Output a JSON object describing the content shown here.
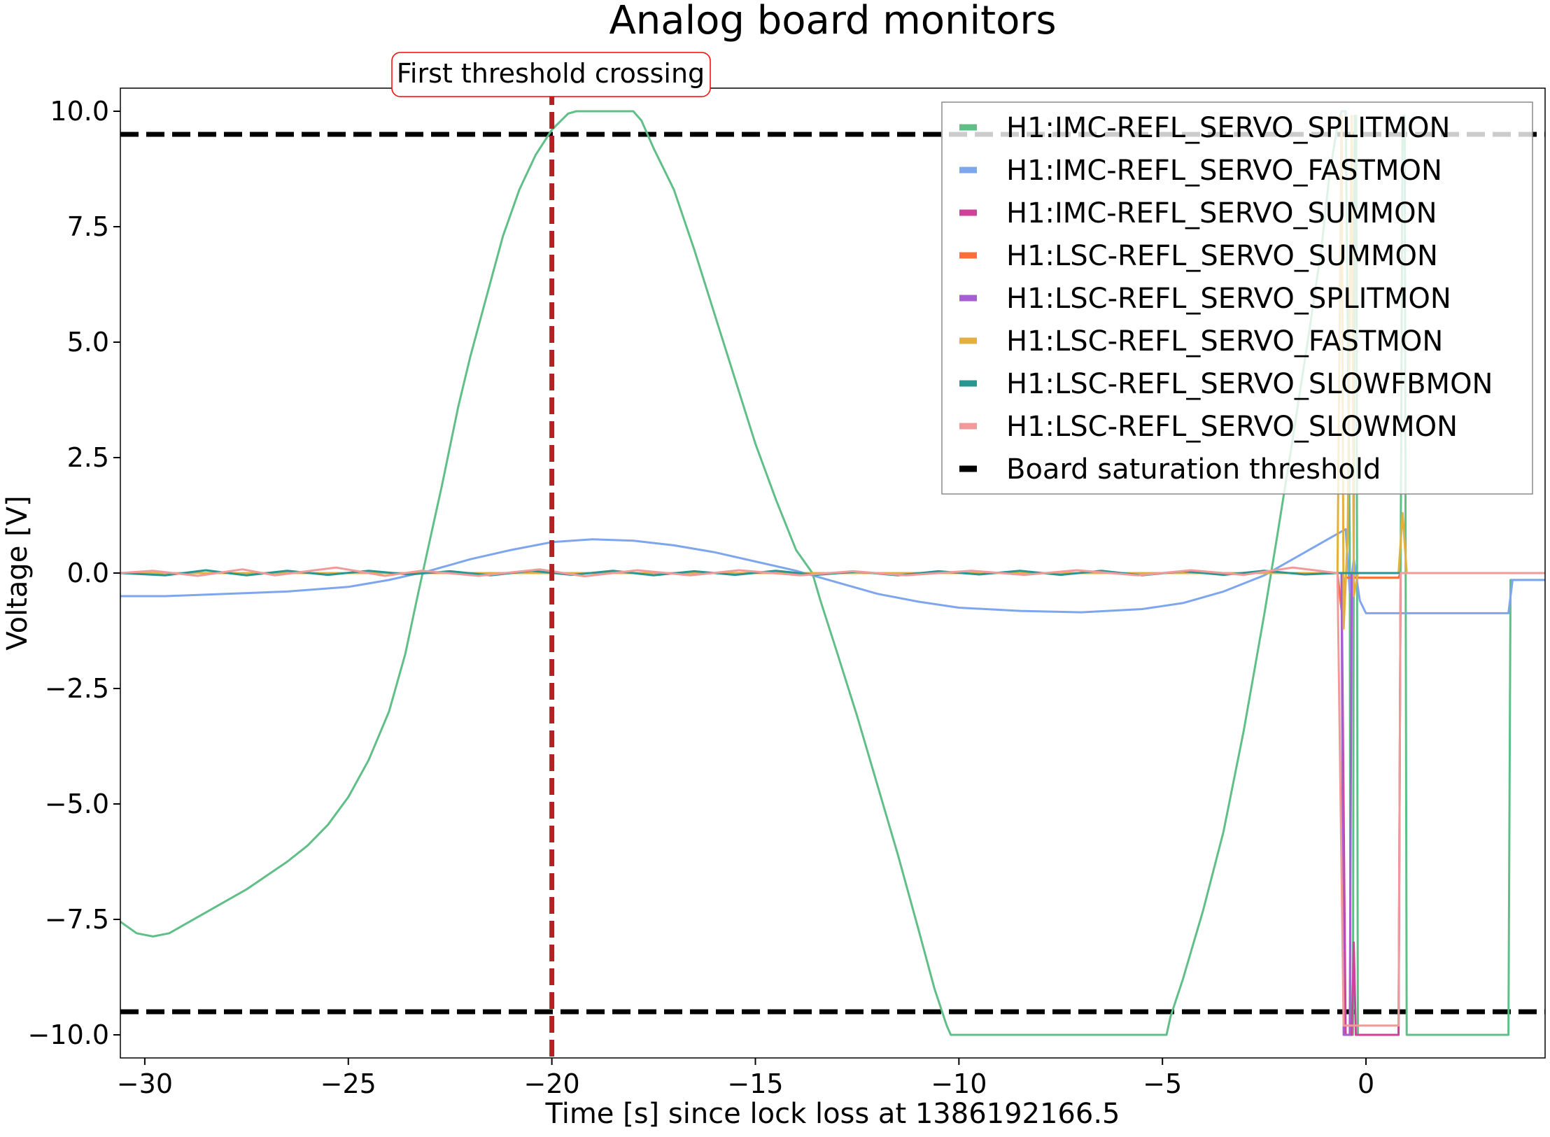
{
  "chart_data": {
    "type": "line",
    "title": "Analog board monitors",
    "xlabel": "Time [s] since lock loss at 1386192166.5",
    "ylabel": "Voltage [V]",
    "xlim": [
      -30.6,
      4.4
    ],
    "ylim": [
      -10.5,
      10.5
    ],
    "xticks": [
      -30,
      -25,
      -20,
      -15,
      -10,
      -5,
      0
    ],
    "xtick_labels": [
      "−30",
      "−25",
      "−20",
      "−15",
      "−10",
      "−5",
      "0"
    ],
    "yticks": [
      10,
      7.5,
      5,
      2.5,
      0,
      -2.5,
      -5,
      -7.5,
      -10
    ],
    "ytick_labels": [
      "10.0",
      "7.5",
      "5.0",
      "2.5",
      "0.0",
      "−2.5",
      "−5.0",
      "−7.5",
      "−10.0"
    ],
    "grid": false,
    "legend_position": "top-right",
    "annotation": {
      "text": "First threshold crossing",
      "x": -20,
      "color": "#b22222",
      "box_edge_color": "#ff0000"
    },
    "thresholds": {
      "name": "Board saturation threshold",
      "values": [
        9.5,
        -9.5
      ],
      "color": "#000000"
    },
    "series": [
      {
        "name": "H1:IMC-REFL_SERVO_SPLITMON",
        "color": "#5fbf87",
        "points": [
          [
            -30.6,
            -7.55
          ],
          [
            -30.2,
            -7.8
          ],
          [
            -29.8,
            -7.87
          ],
          [
            -29.4,
            -7.8
          ],
          [
            -29.0,
            -7.6
          ],
          [
            -28.5,
            -7.35
          ],
          [
            -28.0,
            -7.1
          ],
          [
            -27.5,
            -6.85
          ],
          [
            -27.0,
            -6.55
          ],
          [
            -26.5,
            -6.25
          ],
          [
            -26.0,
            -5.9
          ],
          [
            -25.5,
            -5.45
          ],
          [
            -25.0,
            -4.85
          ],
          [
            -24.5,
            -4.05
          ],
          [
            -24.0,
            -3.0
          ],
          [
            -23.6,
            -1.75
          ],
          [
            -23.3,
            -0.5
          ],
          [
            -23.0,
            0.7
          ],
          [
            -22.7,
            1.9
          ],
          [
            -22.3,
            3.6
          ],
          [
            -22.0,
            4.7
          ],
          [
            -21.6,
            6.0
          ],
          [
            -21.2,
            7.3
          ],
          [
            -20.8,
            8.3
          ],
          [
            -20.4,
            9.05
          ],
          [
            -20.0,
            9.6
          ],
          [
            -19.6,
            9.95
          ],
          [
            -19.4,
            10.0
          ],
          [
            -18.0,
            10.0
          ],
          [
            -17.8,
            9.8
          ],
          [
            -17.5,
            9.2
          ],
          [
            -17.0,
            8.3
          ],
          [
            -16.5,
            7.0
          ],
          [
            -16.0,
            5.6
          ],
          [
            -15.5,
            4.2
          ],
          [
            -15.0,
            2.8
          ],
          [
            -14.5,
            1.6
          ],
          [
            -14.0,
            0.5
          ],
          [
            -13.6,
            0.0
          ],
          [
            -13.4,
            -0.6
          ],
          [
            -13.0,
            -1.7
          ],
          [
            -12.5,
            -3.1
          ],
          [
            -12.0,
            -4.6
          ],
          [
            -11.5,
            -6.1
          ],
          [
            -11.0,
            -7.7
          ],
          [
            -10.6,
            -9.0
          ],
          [
            -10.3,
            -9.8
          ],
          [
            -10.2,
            -10.0
          ],
          [
            -4.9,
            -10.0
          ],
          [
            -4.8,
            -9.6
          ],
          [
            -4.5,
            -8.8
          ],
          [
            -4.0,
            -7.3
          ],
          [
            -3.5,
            -5.6
          ],
          [
            -3.0,
            -3.4
          ],
          [
            -2.5,
            -0.9
          ],
          [
            -2.2,
            0.7
          ],
          [
            -1.8,
            2.9
          ],
          [
            -1.4,
            5.2
          ],
          [
            -1.1,
            7.0
          ],
          [
            -0.9,
            8.6
          ],
          [
            -0.7,
            9.7
          ],
          [
            -0.6,
            10.0
          ],
          [
            -0.5,
            10.0
          ],
          [
            -0.4,
            0.8
          ],
          [
            -0.38,
            -10.0
          ],
          [
            -0.32,
            -10.0
          ],
          [
            -0.3,
            1.0
          ],
          [
            -0.28,
            9.9
          ],
          [
            -0.24,
            9.9
          ],
          [
            -0.22,
            0.5
          ],
          [
            -0.2,
            -10.0
          ],
          [
            0.8,
            -10.0
          ],
          [
            0.9,
            9.9
          ],
          [
            0.95,
            9.9
          ],
          [
            1.0,
            -10.0
          ],
          [
            3.5,
            -10.0
          ],
          [
            3.55,
            -0.15
          ],
          [
            4.4,
            -0.15
          ]
        ]
      },
      {
        "name": "H1:IMC-REFL_SERVO_FASTMON",
        "color": "#7ea6ee",
        "points": [
          [
            -30.6,
            -0.5
          ],
          [
            -29.5,
            -0.5
          ],
          [
            -28.0,
            -0.45
          ],
          [
            -26.5,
            -0.4
          ],
          [
            -25.0,
            -0.3
          ],
          [
            -24.0,
            -0.15
          ],
          [
            -23.0,
            0.05
          ],
          [
            -22.0,
            0.3
          ],
          [
            -21.0,
            0.5
          ],
          [
            -20.0,
            0.67
          ],
          [
            -19.0,
            0.73
          ],
          [
            -18.0,
            0.7
          ],
          [
            -17.0,
            0.6
          ],
          [
            -16.0,
            0.45
          ],
          [
            -15.0,
            0.25
          ],
          [
            -14.0,
            0.05
          ],
          [
            -13.0,
            -0.2
          ],
          [
            -12.0,
            -0.45
          ],
          [
            -11.0,
            -0.62
          ],
          [
            -10.0,
            -0.75
          ],
          [
            -8.5,
            -0.82
          ],
          [
            -7.0,
            -0.85
          ],
          [
            -5.5,
            -0.78
          ],
          [
            -4.5,
            -0.65
          ],
          [
            -3.5,
            -0.4
          ],
          [
            -2.5,
            -0.05
          ],
          [
            -1.5,
            0.45
          ],
          [
            -0.8,
            0.8
          ],
          [
            -0.5,
            0.95
          ],
          [
            -0.4,
            -0.4
          ],
          [
            -0.3,
            0.3
          ],
          [
            -0.15,
            -0.6
          ],
          [
            0.0,
            -0.87
          ],
          [
            3.5,
            -0.87
          ],
          [
            3.6,
            -0.15
          ],
          [
            4.4,
            -0.15
          ]
        ]
      },
      {
        "name": "H1:IMC-REFL_SERVO_SUMMON",
        "color": "#d0419b",
        "points": [
          [
            -30.6,
            0.0
          ],
          [
            -0.6,
            0.0
          ],
          [
            -0.5,
            -10.0
          ],
          [
            -0.35,
            -10.0
          ],
          [
            -0.3,
            -8.0
          ],
          [
            -0.25,
            -10.0
          ],
          [
            0.8,
            -10.0
          ],
          [
            0.85,
            0.0
          ],
          [
            4.4,
            0.0
          ]
        ]
      },
      {
        "name": "H1:LSC-REFL_SERVO_SUMMON",
        "color": "#ff6d3a",
        "points": [
          [
            -30.6,
            0.0
          ],
          [
            -0.7,
            0.0
          ],
          [
            -0.6,
            -0.8
          ],
          [
            -0.5,
            -0.1
          ],
          [
            0.8,
            -0.1
          ],
          [
            0.85,
            0.0
          ],
          [
            4.4,
            0.0
          ]
        ]
      },
      {
        "name": "H1:LSC-REFL_SERVO_SPLITMON",
        "color": "#a65ed3",
        "points": [
          [
            -30.6,
            0.0
          ],
          [
            -0.6,
            0.0
          ],
          [
            -0.55,
            -10.0
          ],
          [
            -0.4,
            -10.0
          ],
          [
            -0.35,
            0.0
          ],
          [
            4.4,
            0.0
          ]
        ]
      },
      {
        "name": "H1:LSC-REFL_SERVO_FASTMON",
        "color": "#e3b03f",
        "points": [
          [
            -30.6,
            0.0
          ],
          [
            -0.7,
            0.0
          ],
          [
            -0.6,
            9.9
          ],
          [
            -0.55,
            -1.2
          ],
          [
            -0.45,
            0.8
          ],
          [
            -0.35,
            9.9
          ],
          [
            -0.3,
            -0.5
          ],
          [
            -0.2,
            0.0
          ],
          [
            0.8,
            0.0
          ],
          [
            0.9,
            1.3
          ],
          [
            1.0,
            0.0
          ],
          [
            4.4,
            0.0
          ]
        ]
      },
      {
        "name": "H1:LSC-REFL_SERVO_SLOWFBMON",
        "color": "#2a9692",
        "points": [
          [
            -30.6,
            0.0
          ],
          [
            -29.5,
            -0.05
          ],
          [
            -28.5,
            0.06
          ],
          [
            -27.5,
            -0.05
          ],
          [
            -26.5,
            0.05
          ],
          [
            -25.5,
            -0.04
          ],
          [
            -24.5,
            0.05
          ],
          [
            -23.5,
            -0.03
          ],
          [
            -22.5,
            0.04
          ],
          [
            -21.5,
            -0.05
          ],
          [
            -20.5,
            0.05
          ],
          [
            -19.5,
            -0.04
          ],
          [
            -18.5,
            0.05
          ],
          [
            -17.5,
            -0.05
          ],
          [
            -16.5,
            0.04
          ],
          [
            -15.5,
            -0.04
          ],
          [
            -14.5,
            0.05
          ],
          [
            -13.5,
            -0.04
          ],
          [
            -12.5,
            0.03
          ],
          [
            -11.5,
            -0.05
          ],
          [
            -10.5,
            0.04
          ],
          [
            -9.5,
            -0.03
          ],
          [
            -8.5,
            0.05
          ],
          [
            -7.5,
            -0.04
          ],
          [
            -6.5,
            0.05
          ],
          [
            -5.5,
            -0.05
          ],
          [
            -4.5,
            0.04
          ],
          [
            -3.5,
            -0.04
          ],
          [
            -2.5,
            0.05
          ],
          [
            -1.5,
            -0.03
          ],
          [
            -0.7,
            0.0
          ],
          [
            4.4,
            0.0
          ]
        ]
      },
      {
        "name": "H1:LSC-REFL_SERVO_SLOWMON",
        "color": "#f09a9a",
        "points": [
          [
            -30.6,
            0.0
          ],
          [
            -29.8,
            0.05
          ],
          [
            -28.7,
            -0.06
          ],
          [
            -27.6,
            0.08
          ],
          [
            -26.8,
            -0.05
          ],
          [
            -25.3,
            0.12
          ],
          [
            -24.1,
            -0.06
          ],
          [
            -23.2,
            0.05
          ],
          [
            -21.8,
            -0.06
          ],
          [
            -20.3,
            0.08
          ],
          [
            -19.2,
            -0.07
          ],
          [
            -17.9,
            0.06
          ],
          [
            -16.6,
            -0.05
          ],
          [
            -15.4,
            0.06
          ],
          [
            -13.9,
            -0.05
          ],
          [
            -12.6,
            0.04
          ],
          [
            -11.3,
            -0.05
          ],
          [
            -9.7,
            0.05
          ],
          [
            -8.4,
            -0.04
          ],
          [
            -7.1,
            0.06
          ],
          [
            -5.6,
            -0.05
          ],
          [
            -4.3,
            0.06
          ],
          [
            -3.0,
            -0.04
          ],
          [
            -1.8,
            0.12
          ],
          [
            -0.7,
            0.0
          ],
          [
            -0.55,
            -9.8
          ],
          [
            0.8,
            -9.8
          ],
          [
            0.85,
            0.0
          ],
          [
            4.4,
            0.0
          ]
        ]
      }
    ]
  }
}
